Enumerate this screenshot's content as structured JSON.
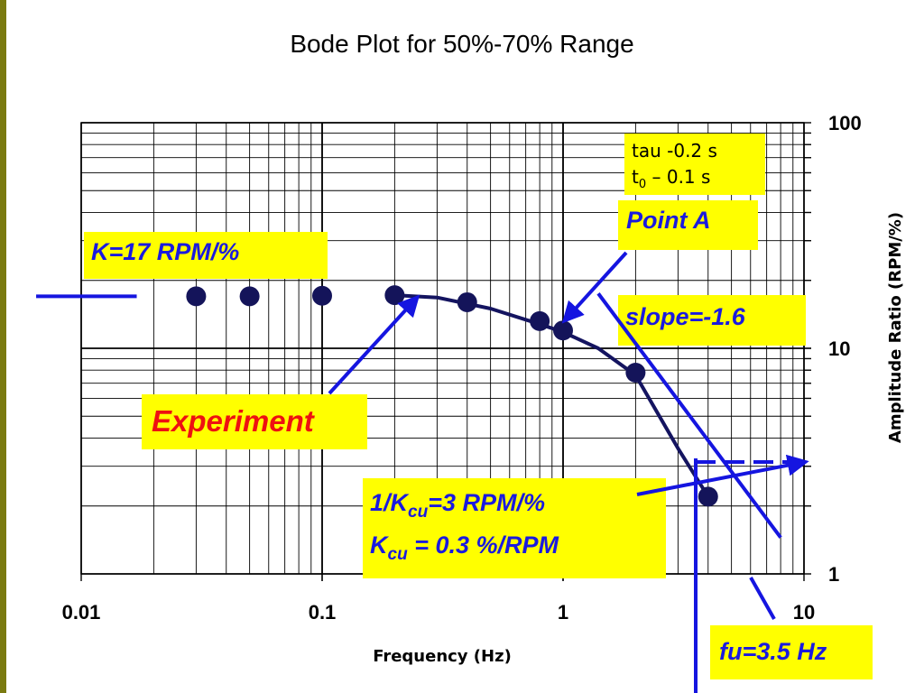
{
  "chart_data": {
    "type": "line",
    "title": "Bode Plot for 50%-70% Range",
    "xlabel": "Frequency (Hz)",
    "ylabel": "Amplitude Ratio (RPM/%)",
    "x_scale": "log",
    "y_scale": "log",
    "xlim": [
      0.01,
      10
    ],
    "ylim": [
      1,
      100
    ],
    "x_ticks": [
      "0.01",
      "0.1",
      "1",
      "10"
    ],
    "y_ticks": [
      "1",
      "10",
      "100"
    ],
    "grid": true,
    "series": [
      {
        "x": [
          0.03,
          0.05,
          0.1,
          0.2,
          0.4,
          0.8,
          1.0,
          2.0,
          4.0
        ],
        "y": [
          17,
          17,
          17.1,
          17.2,
          16,
          13.2,
          12,
          7.8,
          2.2
        ]
      }
    ],
    "fit_curve": {
      "x": [
        0.2,
        0.3,
        0.5,
        0.8,
        1.0,
        1.4,
        2.0,
        3.0,
        4.0
      ],
      "y": [
        17.2,
        16.8,
        15,
        12.8,
        11.8,
        10,
        7.6,
        3.6,
        2.2
      ]
    },
    "low_freq_asymptote": {
      "x": [
        0.0065,
        0.017
      ],
      "y": [
        17,
        17
      ]
    },
    "slope_line": {
      "x": [
        1.4,
        8.0
      ],
      "y": [
        17.5,
        1.45
      ]
    },
    "annotations": {
      "params_line1": "tau -0.2 s",
      "params_line2_pre": "t",
      "params_line2_sub": "0",
      "params_line2_post": " – 0.1 s",
      "point_a": "Point A",
      "k_label": "K=17 RPM/%",
      "slope": "slope=-1.6",
      "experiment": "Experiment",
      "kcu_line1_pre": "1/K",
      "kcu_line1_sub": "cu",
      "kcu_line1_post": "=3 RPM/%",
      "kcu_line2_pre": "K",
      "kcu_line2_sub": "cu",
      "kcu_line2_post": " = 0.3 %/RPM",
      "fu": "fu=3.5 Hz"
    },
    "colors": {
      "marker": "#14145a",
      "curve": "#141460",
      "arrow": "#1515e0",
      "box": "#ffff00"
    }
  }
}
